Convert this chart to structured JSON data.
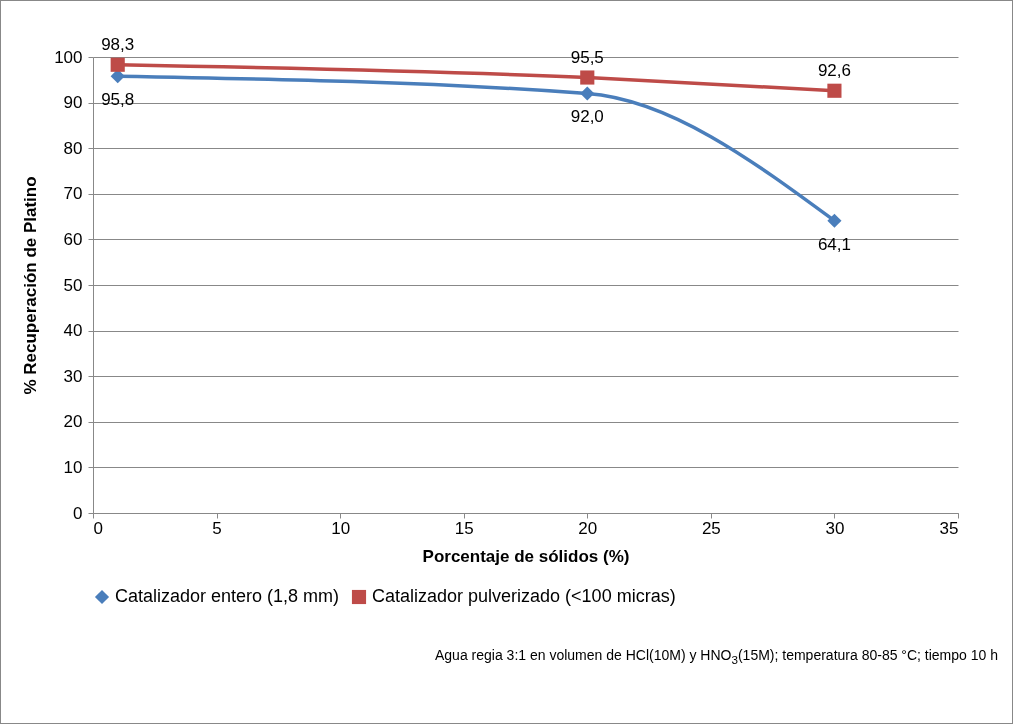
{
  "chart_data": {
    "type": "line",
    "xlabel": "Porcentaje de sólidos (%)",
    "ylabel": "% Recuperación de Platino",
    "x": [
      1,
      20,
      30
    ],
    "series": [
      {
        "name": "Catalizador entero (1,8 mm)",
        "color": "#4a7ebb",
        "values": [
          95.8,
          92.0,
          64.1
        ],
        "value_labels": [
          "95,8",
          "92,0",
          "64,1"
        ],
        "marker": "diamond"
      },
      {
        "name": "Catalizador pulverizado (<100 micras)",
        "color": "#be4b48",
        "values": [
          98.3,
          95.5,
          92.6
        ],
        "value_labels": [
          "98,3",
          "95,5",
          "92,6"
        ],
        "marker": "square"
      }
    ],
    "xlim": [
      0,
      35
    ],
    "xticks": [
      0,
      5,
      10,
      15,
      20,
      25,
      30,
      35
    ],
    "ylim": [
      0,
      100
    ],
    "yticks": [
      0,
      10,
      20,
      30,
      40,
      50,
      60,
      70,
      80,
      90,
      100
    ],
    "grid": "y",
    "legend": "bottom",
    "line_style": "solid",
    "annotations": [
      "Agua regia 3:1 en  volumen de HCl(10M) y HNO$_{3}$(15M); temperatura 80-85 °C; tiempo 10 h"
    ]
  }
}
